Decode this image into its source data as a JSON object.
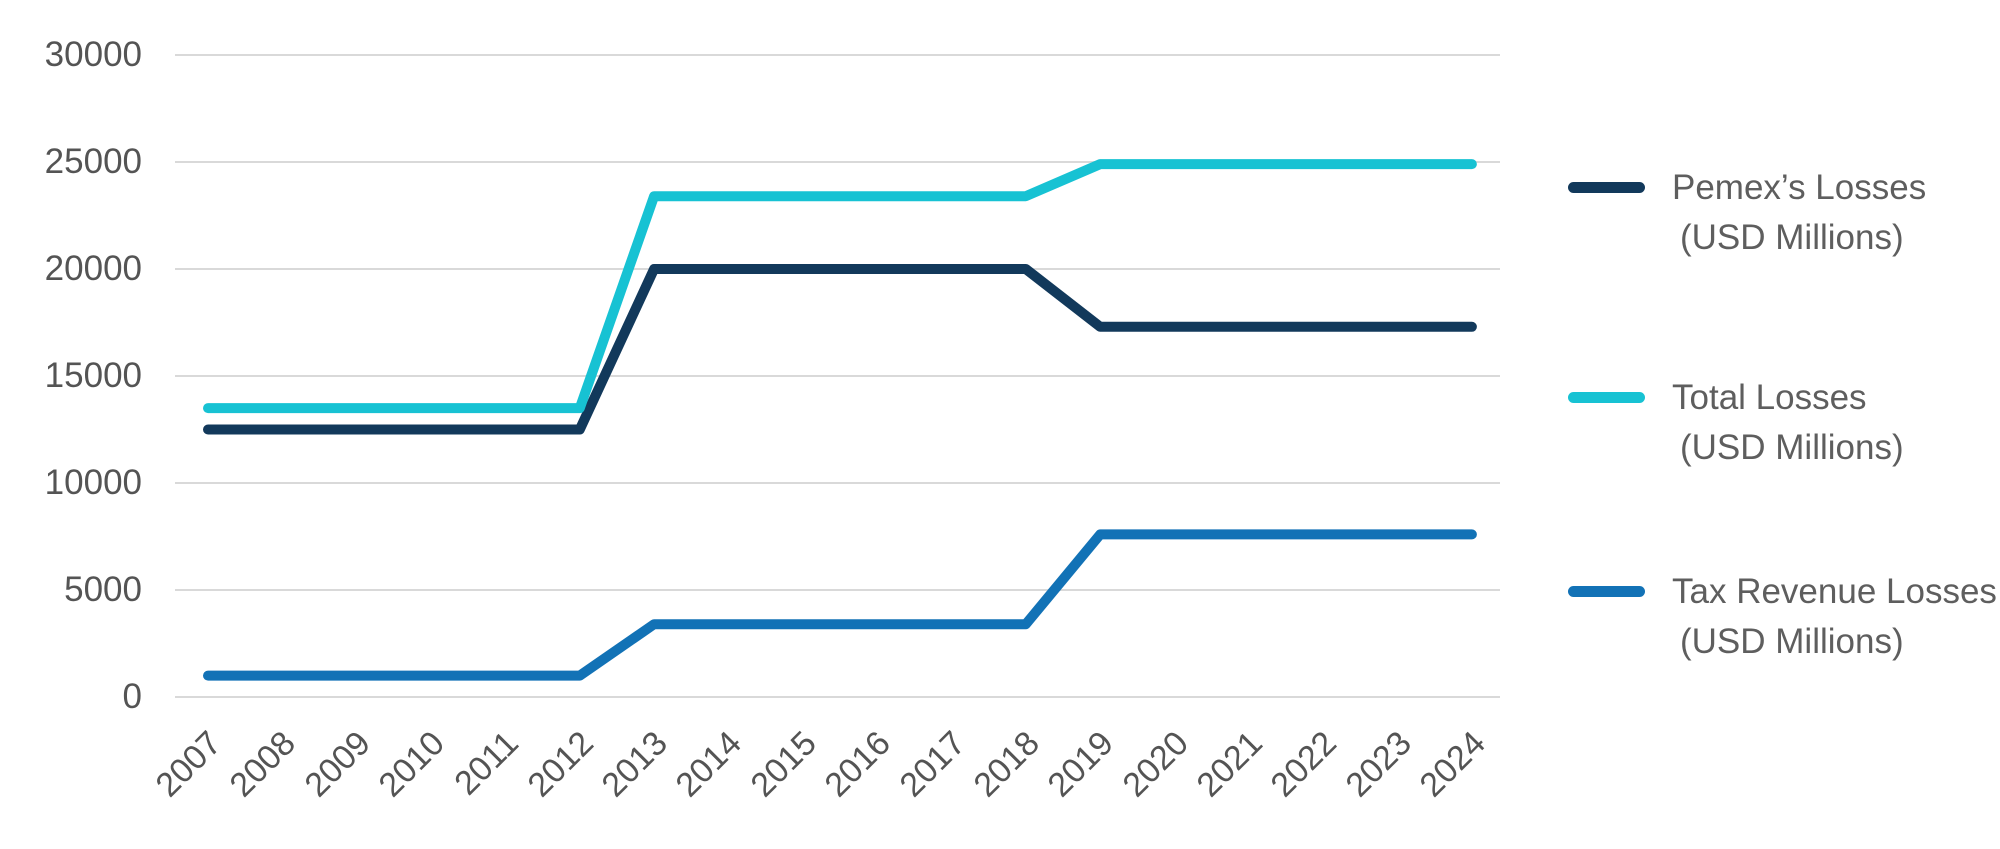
{
  "chart_data": {
    "type": "line",
    "x": [
      2007,
      2008,
      2009,
      2010,
      2011,
      2012,
      2013,
      2014,
      2015,
      2016,
      2017,
      2018,
      2019,
      2020,
      2021,
      2022,
      2023,
      2024
    ],
    "series": [
      {
        "name": "Pemex’s Losses (USD Millions)",
        "legend_lines": [
          "Pemex’s Losses",
          "(USD Millions)"
        ],
        "color": "#12395B",
        "values": [
          12500,
          12500,
          12500,
          12500,
          12500,
          12500,
          20000,
          20000,
          20000,
          20000,
          20000,
          20000,
          17300,
          17300,
          17300,
          17300,
          17300,
          17300
        ]
      },
      {
        "name": "Total Losses (USD Millions)",
        "legend_lines": [
          "Total Losses",
          "(USD Millions)"
        ],
        "color": "#17C2D3",
        "values": [
          13500,
          13500,
          13500,
          13500,
          13500,
          13500,
          23400,
          23400,
          23400,
          23400,
          23400,
          23400,
          24900,
          24900,
          24900,
          24900,
          24900,
          24900
        ]
      },
      {
        "name": "Tax Revenue Losses (USD Millions)",
        "legend_lines": [
          "Tax Revenue Losses",
          "(USD Millions)"
        ],
        "color": "#1272B6",
        "values": [
          1000,
          1000,
          1000,
          1000,
          1000,
          1000,
          3400,
          3400,
          3400,
          3400,
          3400,
          3400,
          7600,
          7600,
          7600,
          7600,
          7600,
          7600
        ]
      }
    ],
    "title": "",
    "xlabel": "",
    "ylabel": "",
    "y_ticks": [
      0,
      5000,
      10000,
      15000,
      20000,
      25000,
      30000
    ],
    "ylim": [
      0,
      30000
    ],
    "grid": true,
    "x_tick_rotation": 45,
    "legend_position": "right",
    "colors": {
      "grid": "#D9D9D9",
      "tick_text": "#545454",
      "legend_text": "#5E5E5E",
      "background": "#FFFFFF"
    }
  }
}
